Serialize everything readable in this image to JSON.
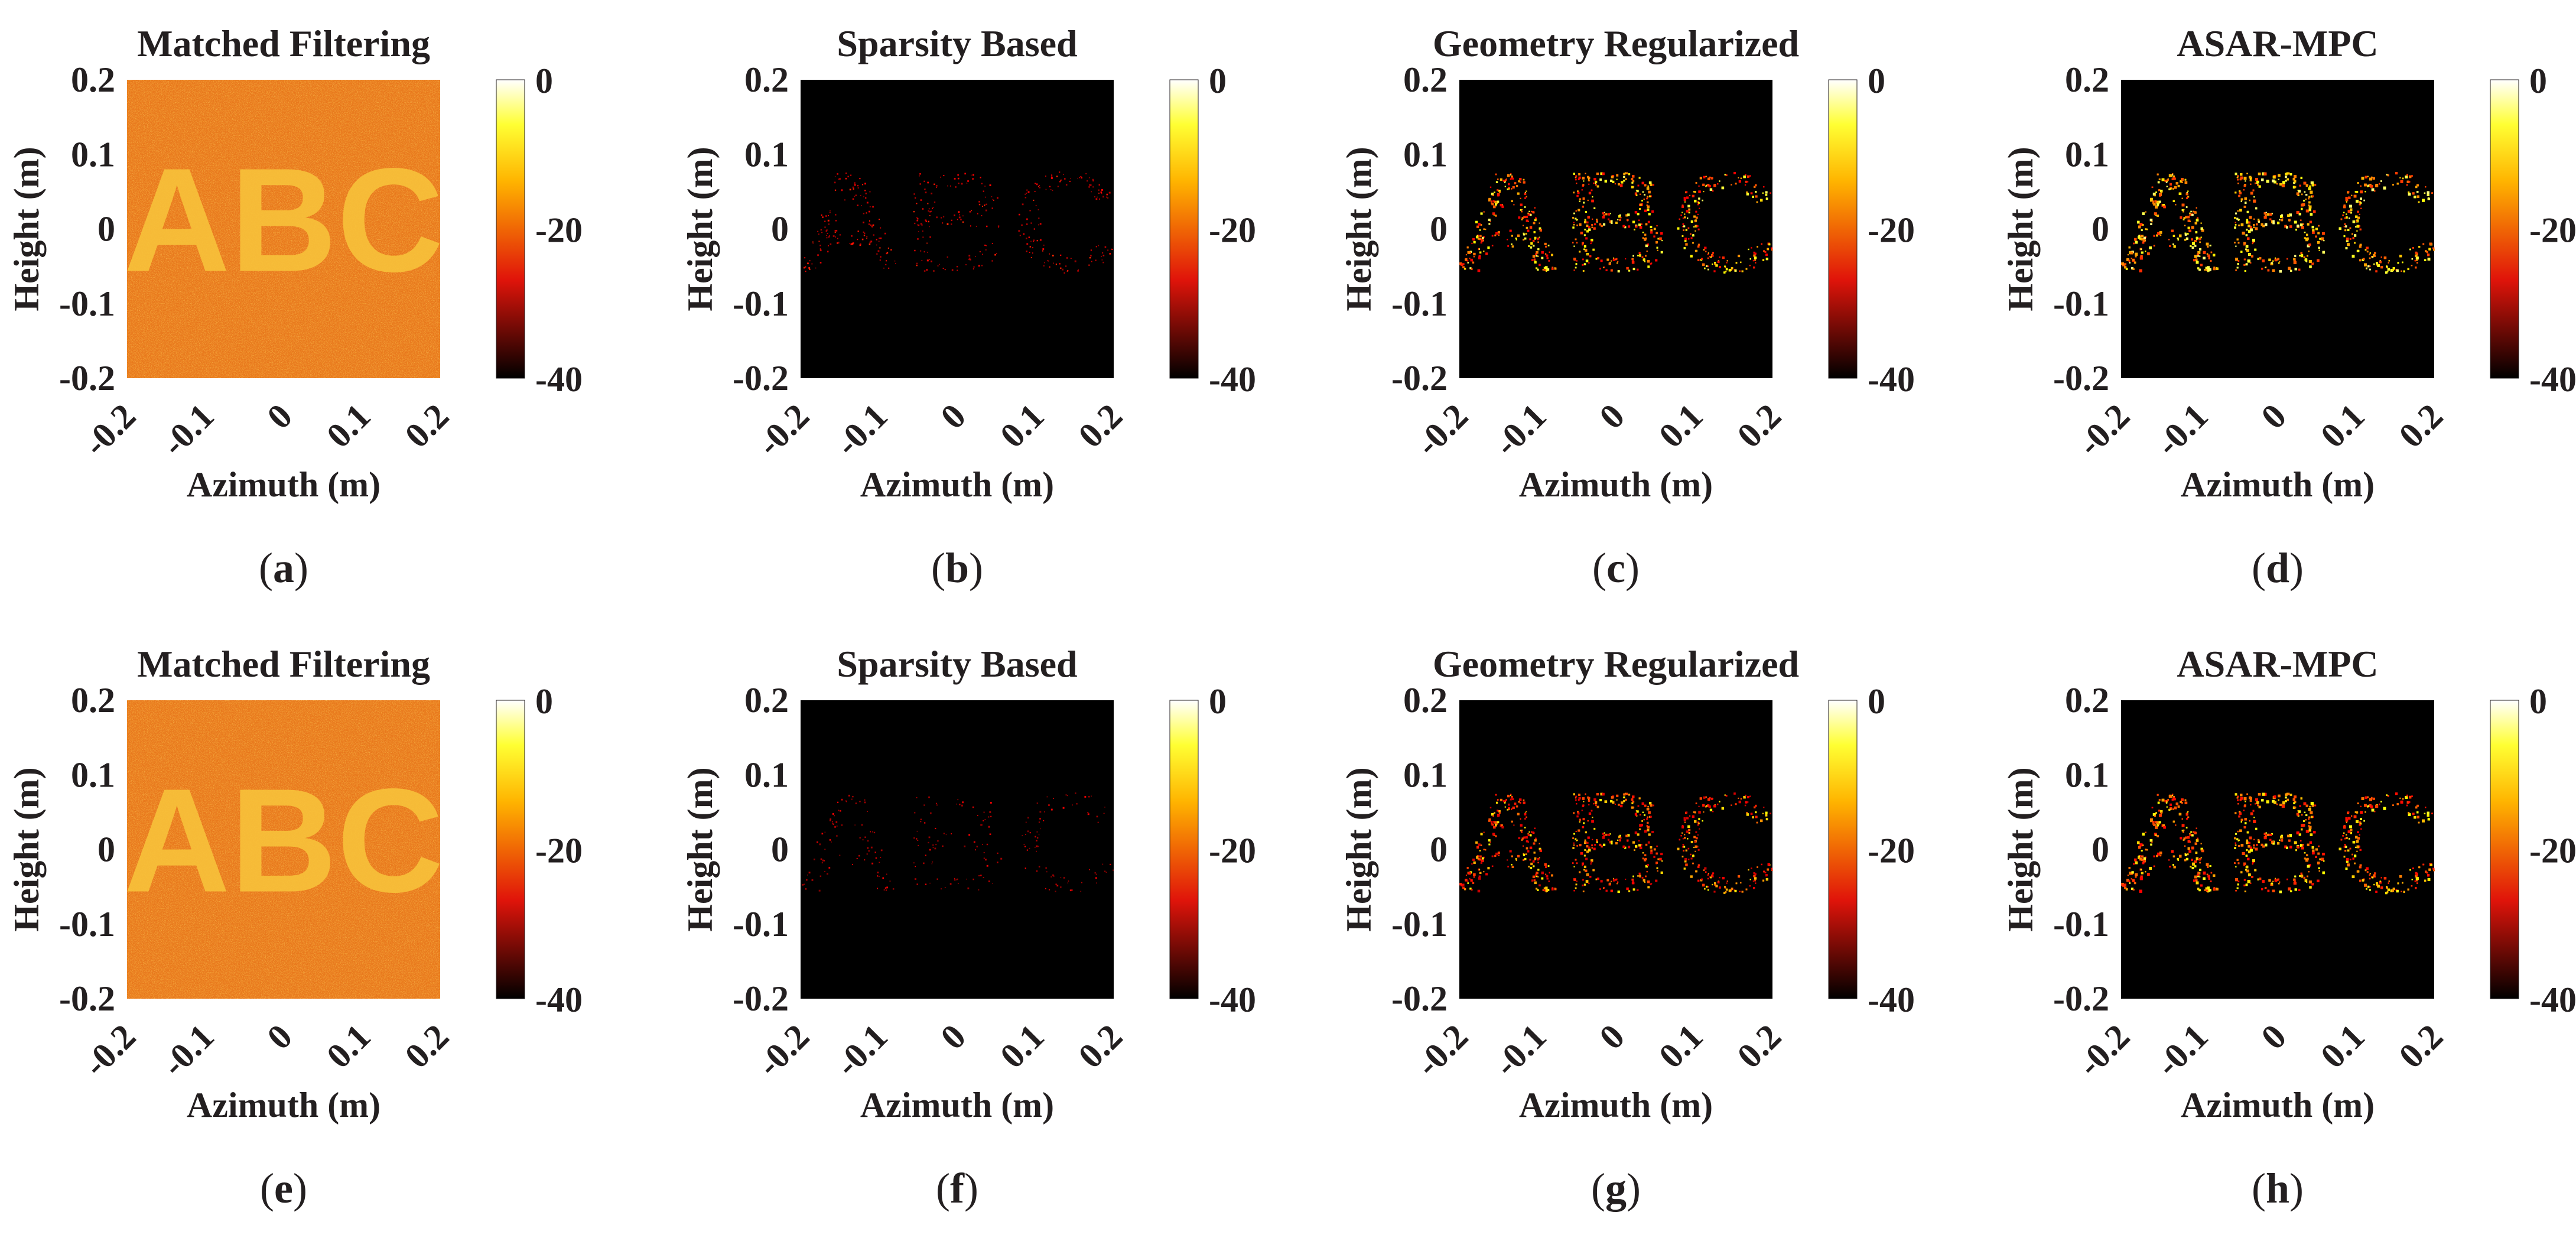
{
  "figure": {
    "colormap": "hot",
    "colors": {
      "background": "#ffffff",
      "image_black": "#000000",
      "text": "#231f20"
    }
  },
  "chart_data": [
    {
      "panel": "a",
      "type": "heatmap",
      "title": "Matched Filtering",
      "style": "matched",
      "xlabel": "Azimuth (m)",
      "ylabel": "Height (m)",
      "xlim": [
        -0.2,
        0.2
      ],
      "ylim": [
        -0.2,
        0.2
      ],
      "xticks": [
        "-0.2",
        "-0.1",
        "0",
        "0.1",
        "0.2"
      ],
      "yticks": [
        "0.2",
        "0.1",
        "0",
        "-0.1",
        "-0.2"
      ],
      "colorbar": {
        "range_db": [
          -40,
          0
        ],
        "ticks": [
          "0",
          "-20",
          "-40"
        ]
      },
      "text_in_image": "ABC",
      "subcaption": {
        "open": "(",
        "letter": "a",
        "close": ")"
      }
    },
    {
      "panel": "b",
      "type": "heatmap",
      "title": "Sparsity Based",
      "style": "sparse",
      "xlabel": "Azimuth (m)",
      "ylabel": "Height (m)",
      "xlim": [
        -0.2,
        0.2
      ],
      "ylim": [
        -0.2,
        0.2
      ],
      "xticks": [
        "-0.2",
        "-0.1",
        "0",
        "0.1",
        "0.2"
      ],
      "yticks": [
        "0.2",
        "0.1",
        "0",
        "-0.1",
        "-0.2"
      ],
      "colorbar": {
        "range_db": [
          -40,
          0
        ],
        "ticks": [
          "0",
          "-20",
          "-40"
        ]
      },
      "text_in_image": "ABC",
      "subcaption": {
        "open": "(",
        "letter": "b",
        "close": ")"
      }
    },
    {
      "panel": "c",
      "type": "heatmap",
      "title": "Geometry Regularized",
      "style": "geometry",
      "xlabel": "Azimuth (m)",
      "ylabel": "Height (m)",
      "xlim": [
        -0.2,
        0.2
      ],
      "ylim": [
        -0.2,
        0.2
      ],
      "xticks": [
        "-0.2",
        "-0.1",
        "0",
        "0.1",
        "0.2"
      ],
      "yticks": [
        "0.2",
        "0.1",
        "0",
        "-0.1",
        "-0.2"
      ],
      "colorbar": {
        "range_db": [
          -40,
          0
        ],
        "ticks": [
          "0",
          "-20",
          "-40"
        ]
      },
      "text_in_image": "ABC",
      "subcaption": {
        "open": "(",
        "letter": "c",
        "close": ")"
      }
    },
    {
      "panel": "d",
      "type": "heatmap",
      "title": "ASAR-MPC",
      "style": "asar",
      "xlabel": "Azimuth (m)",
      "ylabel": "Height (m)",
      "xlim": [
        -0.2,
        0.2
      ],
      "ylim": [
        -0.2,
        0.2
      ],
      "xticks": [
        "-0.2",
        "-0.1",
        "0",
        "0.1",
        "0.2"
      ],
      "yticks": [
        "0.2",
        "0.1",
        "0",
        "-0.1",
        "-0.2"
      ],
      "colorbar": {
        "range_db": [
          -40,
          0
        ],
        "ticks": [
          "0",
          "-20",
          "-40"
        ]
      },
      "text_in_image": "ABC",
      "subcaption": {
        "open": "(",
        "letter": "d",
        "close": ")"
      }
    },
    {
      "panel": "e",
      "type": "heatmap",
      "title": "Matched Filtering",
      "style": "matched",
      "xlabel": "Azimuth (m)",
      "ylabel": "Height (m)",
      "xlim": [
        -0.2,
        0.2
      ],
      "ylim": [
        -0.2,
        0.2
      ],
      "xticks": [
        "-0.2",
        "-0.1",
        "0",
        "0.1",
        "0.2"
      ],
      "yticks": [
        "0.2",
        "0.1",
        "0",
        "-0.1",
        "-0.2"
      ],
      "colorbar": {
        "range_db": [
          -40,
          0
        ],
        "ticks": [
          "0",
          "-20",
          "-40"
        ]
      },
      "text_in_image": "ABC",
      "subcaption": {
        "open": "(",
        "letter": "e",
        "close": ")"
      }
    },
    {
      "panel": "f",
      "type": "heatmap",
      "title": "Sparsity Based",
      "style": "sparse",
      "xlabel": "Azimuth (m)",
      "ylabel": "Height (m)",
      "xlim": [
        -0.2,
        0.2
      ],
      "ylim": [
        -0.2,
        0.2
      ],
      "xticks": [
        "-0.2",
        "-0.1",
        "0",
        "0.1",
        "0.2"
      ],
      "yticks": [
        "0.2",
        "0.1",
        "0",
        "-0.1",
        "-0.2"
      ],
      "colorbar": {
        "range_db": [
          -40,
          0
        ],
        "ticks": [
          "0",
          "-20",
          "-40"
        ]
      },
      "text_in_image": "ABC",
      "subcaption": {
        "open": "(",
        "letter": "f",
        "close": ")"
      }
    },
    {
      "panel": "g",
      "type": "heatmap",
      "title": "Geometry Regularized",
      "style": "geometry",
      "xlabel": "Azimuth (m)",
      "ylabel": "Height (m)",
      "xlim": [
        -0.2,
        0.2
      ],
      "ylim": [
        -0.2,
        0.2
      ],
      "xticks": [
        "-0.2",
        "-0.1",
        "0",
        "0.1",
        "0.2"
      ],
      "yticks": [
        "0.2",
        "0.1",
        "0",
        "-0.1",
        "-0.2"
      ],
      "colorbar": {
        "range_db": [
          -40,
          0
        ],
        "ticks": [
          "0",
          "-20",
          "-40"
        ]
      },
      "text_in_image": "ABC",
      "subcaption": {
        "open": "(",
        "letter": "g",
        "close": ")"
      }
    },
    {
      "panel": "h",
      "type": "heatmap",
      "title": "ASAR-MPC",
      "style": "asar",
      "xlabel": "Azimuth (m)",
      "ylabel": "Height (m)",
      "xlim": [
        -0.2,
        0.2
      ],
      "ylim": [
        -0.2,
        0.2
      ],
      "xticks": [
        "-0.2",
        "-0.1",
        "0",
        "0.1",
        "0.2"
      ],
      "yticks": [
        "0.2",
        "0.1",
        "0",
        "-0.1",
        "-0.2"
      ],
      "colorbar": {
        "range_db": [
          -40,
          0
        ],
        "ticks": [
          "0",
          "-20",
          "-40"
        ]
      },
      "text_in_image": "ABC",
      "subcaption": {
        "open": "(",
        "letter": "h",
        "close": ")"
      }
    }
  ]
}
